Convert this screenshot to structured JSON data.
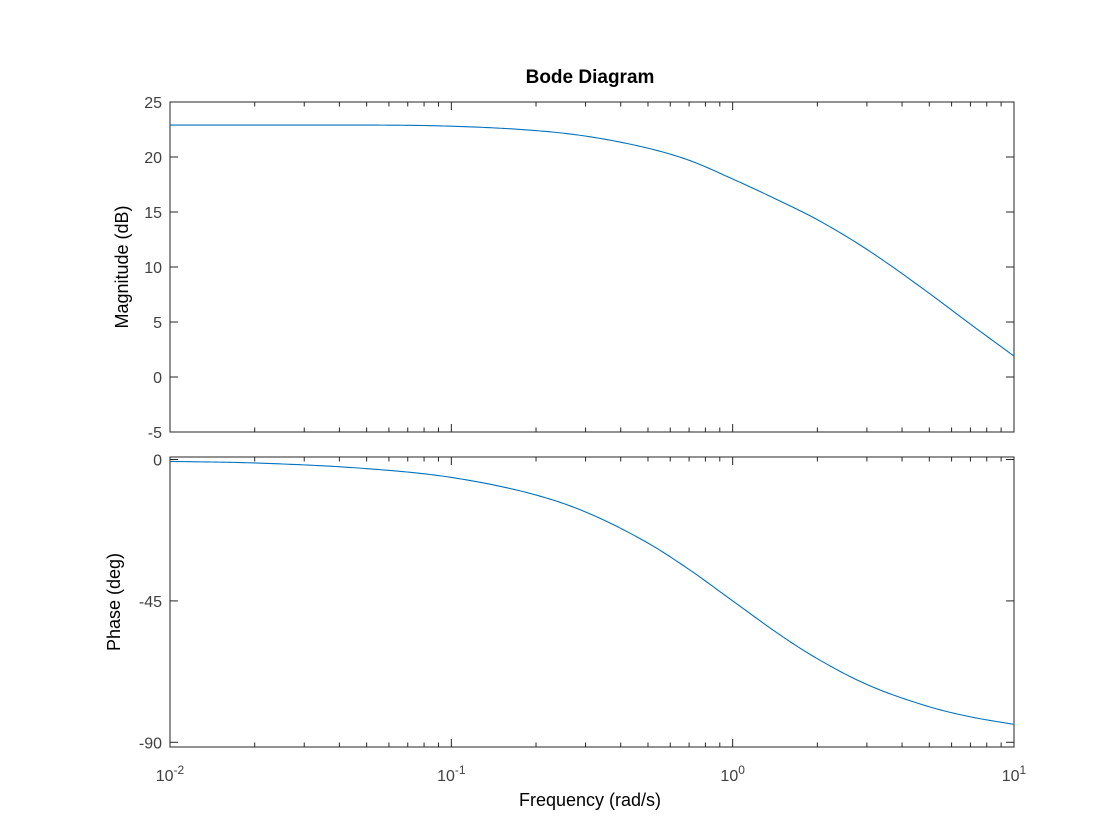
{
  "chart_data": {
    "type": "line",
    "title": "Bode Diagram",
    "xlabel": "Frequency  (rad/s)",
    "xscale": "log",
    "xlim": [
      0.01,
      10
    ],
    "xticks": [
      {
        "base": "10",
        "exp": "-2"
      },
      {
        "base": "10",
        "exp": "-1"
      },
      {
        "base": "10",
        "exp": "0"
      },
      {
        "base": "10",
        "exp": "1"
      }
    ],
    "grid": false,
    "colors": {
      "line": "#0072BD",
      "axes": "#262626"
    },
    "panels": [
      {
        "ylabel": "Magnitude (dB)",
        "ylim": [
          -5,
          25
        ],
        "yticks": [
          "25",
          "20",
          "15",
          "10",
          "5",
          "0",
          "-5"
        ],
        "series": [
          {
            "x": [
              0.01,
              0.02,
              0.05,
              0.1,
              0.2,
              0.3,
              0.5,
              0.7,
              1,
              1.5,
              2,
              3,
              5,
              7,
              10
            ],
            "y": [
              22.9,
              22.9,
              22.9,
              22.8,
              22.4,
              21.9,
              20.8,
              19.7,
              18.0,
              15.9,
              14.3,
              11.6,
              7.6,
              4.8,
              1.9
            ]
          }
        ]
      },
      {
        "ylabel": "Phase (deg)",
        "ylim": [
          -91.5,
          0.8
        ],
        "yticks": [
          "0",
          "-45",
          "-90"
        ],
        "series": [
          {
            "x": [
              0.01,
              0.02,
              0.05,
              0.1,
              0.2,
              0.3,
              0.5,
              0.7,
              1,
              1.5,
              2,
              3,
              5,
              7,
              10
            ],
            "y": [
              -0.6,
              -1.1,
              -2.9,
              -5.7,
              -11.3,
              -16.7,
              -26.6,
              -35.0,
              -45.0,
              -56.3,
              -63.4,
              -71.6,
              -78.7,
              -81.9,
              -84.3
            ]
          }
        ]
      }
    ]
  }
}
